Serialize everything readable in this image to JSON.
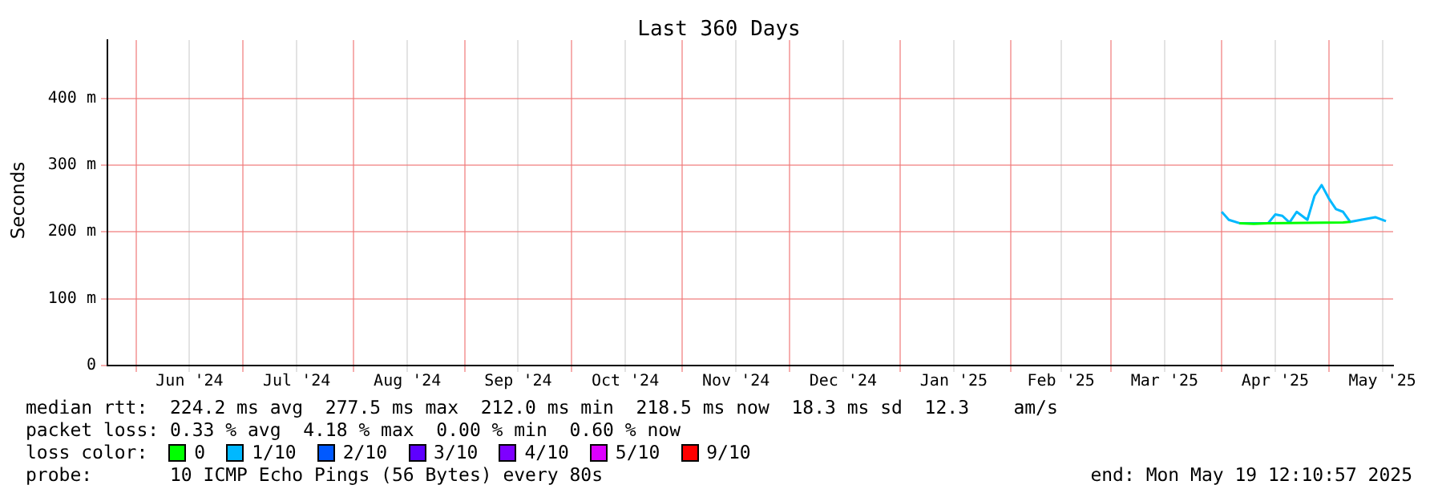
{
  "chart_data": {
    "type": "line",
    "title": "Last 360 Days",
    "ylabel": "Seconds",
    "xlim": [
      "2024-05-24",
      "2025-05-19"
    ],
    "xticks": [
      {
        "value": "2024-06-01",
        "label": null
      },
      {
        "value": "2024-06-16",
        "label": "Jun '24"
      },
      {
        "value": "2024-07-01",
        "label": null
      },
      {
        "value": "2024-07-16",
        "label": "Jul '24"
      },
      {
        "value": "2024-08-01",
        "label": null
      },
      {
        "value": "2024-08-16",
        "label": "Aug '24"
      },
      {
        "value": "2024-09-01",
        "label": null
      },
      {
        "value": "2024-09-16",
        "label": "Sep '24"
      },
      {
        "value": "2024-10-01",
        "label": null
      },
      {
        "value": "2024-10-16",
        "label": "Oct '24"
      },
      {
        "value": "2024-11-01",
        "label": null
      },
      {
        "value": "2024-11-16",
        "label": "Nov '24"
      },
      {
        "value": "2024-12-01",
        "label": null
      },
      {
        "value": "2024-12-16",
        "label": "Dec '24"
      },
      {
        "value": "2025-01-01",
        "label": null
      },
      {
        "value": "2025-01-16",
        "label": "Jan '25"
      },
      {
        "value": "2025-02-01",
        "label": null
      },
      {
        "value": "2025-02-15",
        "label": "Feb '25"
      },
      {
        "value": "2025-03-01",
        "label": null
      },
      {
        "value": "2025-03-16",
        "label": "Mar '25"
      },
      {
        "value": "2025-04-01",
        "label": null
      },
      {
        "value": "2025-04-16",
        "label": "Apr '25"
      },
      {
        "value": "2025-05-01",
        "label": null
      },
      {
        "value": "2025-05-16",
        "label": "May '25"
      }
    ],
    "ylim": [
      0,
      487
    ],
    "yticks": [
      0,
      {
        "value": 100,
        "label": "100 m"
      },
      {
        "value": 200,
        "label": "200 m"
      },
      {
        "value": 300,
        "label": "300 m"
      },
      {
        "value": 400,
        "label": "400 m"
      }
    ],
    "grid": true,
    "legend": "bottom",
    "legend_title": "loss color:",
    "marker": "none",
    "line_style": "solid",
    "series": [
      {
        "name": "0",
        "color": "#00ff00",
        "x": [
          "2025-04-06",
          "2025-04-10",
          "2025-04-14",
          "2025-05-05",
          "2025-05-07"
        ],
        "values": [
          213,
          212,
          213,
          214,
          215
        ]
      },
      {
        "name": "1/10",
        "color": "#00b8ff",
        "x": [
          "2025-04-01",
          "2025-04-03",
          "2025-04-06",
          "2025-04-14",
          "2025-04-16",
          "2025-04-18",
          "2025-04-20",
          "2025-04-22",
          "2025-04-25",
          "2025-04-27",
          "2025-04-29",
          "2025-05-01",
          "2025-05-03",
          "2025-05-05",
          "2025-05-07",
          "2025-05-10",
          "2025-05-14",
          "2025-05-17"
        ],
        "values": [
          230,
          218,
          213,
          213,
          226,
          224,
          214,
          230,
          218,
          254,
          270,
          250,
          234,
          230,
          215,
          218,
          222,
          216
        ]
      },
      {
        "name": "2/10",
        "color": "#0059ff"
      },
      {
        "name": "3/10",
        "color": "#5e00ff"
      },
      {
        "name": "4/10",
        "color": "#7e00ff"
      },
      {
        "name": "5/10",
        "color": "#dd00ff"
      },
      {
        "name": "9/10",
        "color": "#ff0000"
      }
    ],
    "annotations": [
      "median rtt:  224.2 ms avg  277.5 ms max  212.0 ms min  218.5 ms now  18.3 ms sd  12.3    am/s",
      "packet loss: 0.33 % avg  4.18 % max  0.00 % min  0.60 % now",
      "probe:       10 ICMP Echo Pings (56 Bytes) every 80s",
      "end: Mon May 19 12:10:57 2025"
    ]
  }
}
